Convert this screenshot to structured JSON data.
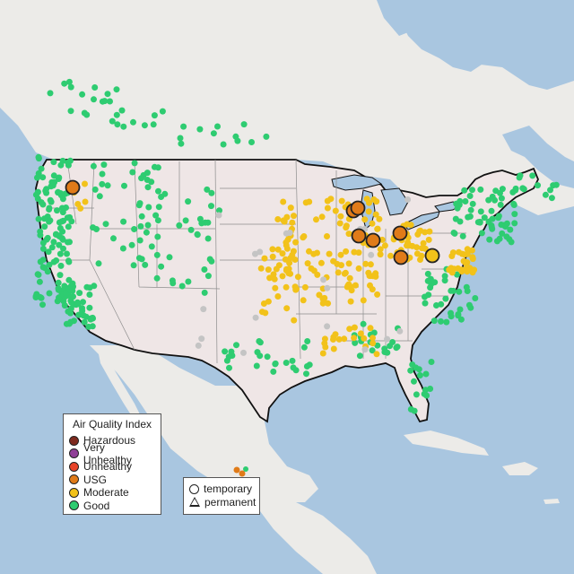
{
  "legend": {
    "title": "Air Quality Index",
    "categories": [
      {
        "label": "Hazardous",
        "color": "#7e2a1e"
      },
      {
        "label": "Very Unhealthy",
        "color": "#8f3f97"
      },
      {
        "label": "Unhealthy",
        "color": "#e8442a"
      },
      {
        "label": "USG",
        "color": "#e07b19"
      },
      {
        "label": "Moderate",
        "color": "#f2c21a"
      },
      {
        "label": "Good",
        "color": "#2ecc71"
      }
    ]
  },
  "type_legend": {
    "temporary": "temporary",
    "permanent": "permanent"
  },
  "colors": {
    "water": "#a9c6e0",
    "land": "#eeece9",
    "us_land": "#efe5e5",
    "border": "#111111",
    "state_lines": "#8a8a8a",
    "nodata": "#c0c0c0"
  }
}
